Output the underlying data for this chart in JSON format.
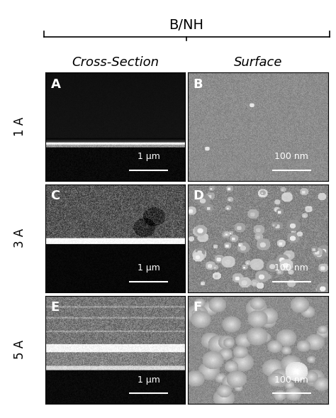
{
  "title": "B/NH",
  "col_labels": [
    "Cross-Section",
    "Surface"
  ],
  "row_labels": [
    "1 A",
    "3 A",
    "5 A"
  ],
  "panel_labels": [
    "A",
    "B",
    "C",
    "D",
    "E",
    "F"
  ],
  "scalebar_cross": "1 μm",
  "scalebar_surface": "100 nm",
  "bg_color": "#ffffff",
  "panel_bg": "#1a1a1a",
  "label_color": "#ffffff",
  "text_color": "#000000",
  "title_fontsize": 14,
  "col_label_fontsize": 13,
  "row_label_fontsize": 12,
  "panel_label_fontsize": 13,
  "scalebar_fontsize": 9,
  "fig_width": 4.74,
  "fig_height": 5.89
}
